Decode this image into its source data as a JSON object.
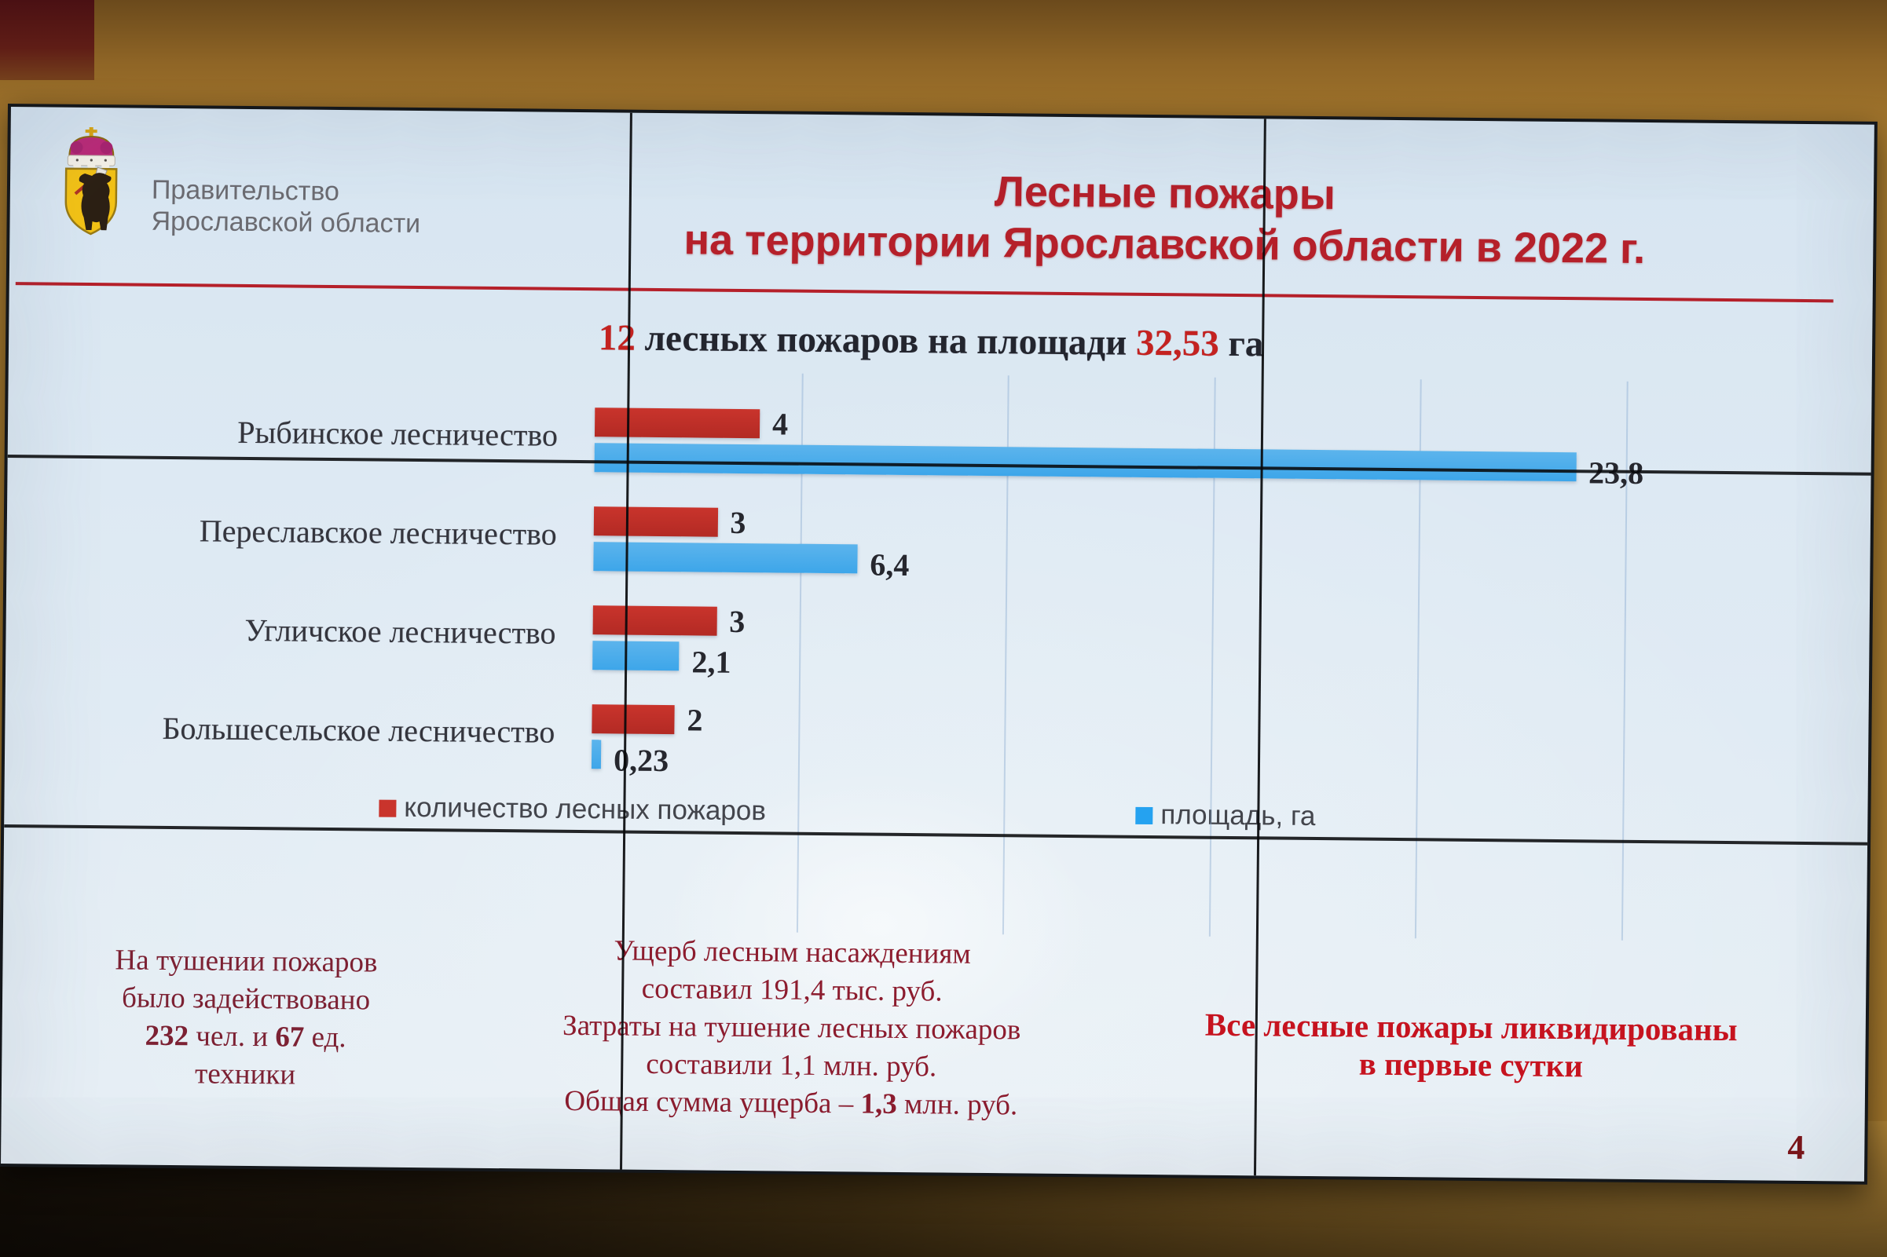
{
  "org": {
    "line1": "Правительство",
    "line2": "Ярославской области"
  },
  "title": {
    "line1": "Лесные пожары",
    "line2": "на территории Ярославской области в 2022 г."
  },
  "subtitle": {
    "lines": [
      [
        {
          "t": "12",
          "red": true
        },
        {
          "t": " лесных пожаров на площади "
        },
        {
          "t": "32,53",
          "red": true
        },
        {
          "t": " га"
        }
      ]
    ]
  },
  "chart_data": {
    "type": "bar",
    "orientation": "horizontal",
    "categories": [
      "Рыбинское лесничество",
      "Переславское лесничество",
      "Угличское лесничество",
      "Большесельское лесничество"
    ],
    "series": [
      {
        "name": "количество лесных пожаров",
        "color": "#c9342c",
        "values": [
          4,
          3,
          3,
          2
        ],
        "labels": [
          "4",
          "3",
          "3",
          "2"
        ]
      },
      {
        "name": "площадь, га",
        "color": "#3da6ea",
        "values": [
          23.8,
          6.4,
          2.1,
          0.23
        ],
        "labels": [
          "23,8",
          "6,4",
          "2,1",
          "0,23"
        ]
      }
    ],
    "xlim": [
      0,
      25
    ],
    "gridline_step": 5,
    "grid": true,
    "legend_position": "bottom",
    "value_labels": true,
    "title": "Лесные пожары на территории Ярославской области в 2022 г.",
    "subtitle": "12 лесных пожаров на площади 32,53 га"
  },
  "footer": {
    "left": {
      "lines": [
        [
          {
            "t": "На тушении пожаров"
          }
        ],
        [
          {
            "t": "было задействовано"
          }
        ],
        [
          {
            "t": "232",
            "b": true
          },
          {
            "t": " чел. и "
          },
          {
            "t": "67",
            "b": true
          },
          {
            "t": " ед."
          }
        ],
        [
          {
            "t": "техники"
          }
        ]
      ]
    },
    "middle": {
      "lines": [
        [
          {
            "t": "Ущерб лесным насаждениям"
          }
        ],
        [
          {
            "t": "составил 191,4 тыс. руб."
          }
        ],
        [
          {
            "t": "Затраты на тушение лесных пожаров"
          }
        ],
        [
          {
            "t": "составили 1,1 млн. руб."
          }
        ],
        [
          {
            "t": "Общая сумма ущерба – "
          },
          {
            "t": "1,3",
            "b": true
          },
          {
            "t": " млн. руб."
          }
        ]
      ]
    },
    "right": {
      "lines": [
        [
          {
            "t": "Все лесные пожары ликвидированы"
          }
        ],
        [
          {
            "t": "в первые сутки"
          }
        ]
      ]
    }
  },
  "page_number": "4",
  "colors": {
    "title_red": "#b5202a",
    "accent_red": "#c42220",
    "bar_red": "#c9342c",
    "bar_blue": "#3da6ea",
    "maroon_text": "#7c2133",
    "bright_red_text": "#c6131f",
    "slide_background": "#e0ebf4",
    "wall_tan": "#a87b2e"
  }
}
